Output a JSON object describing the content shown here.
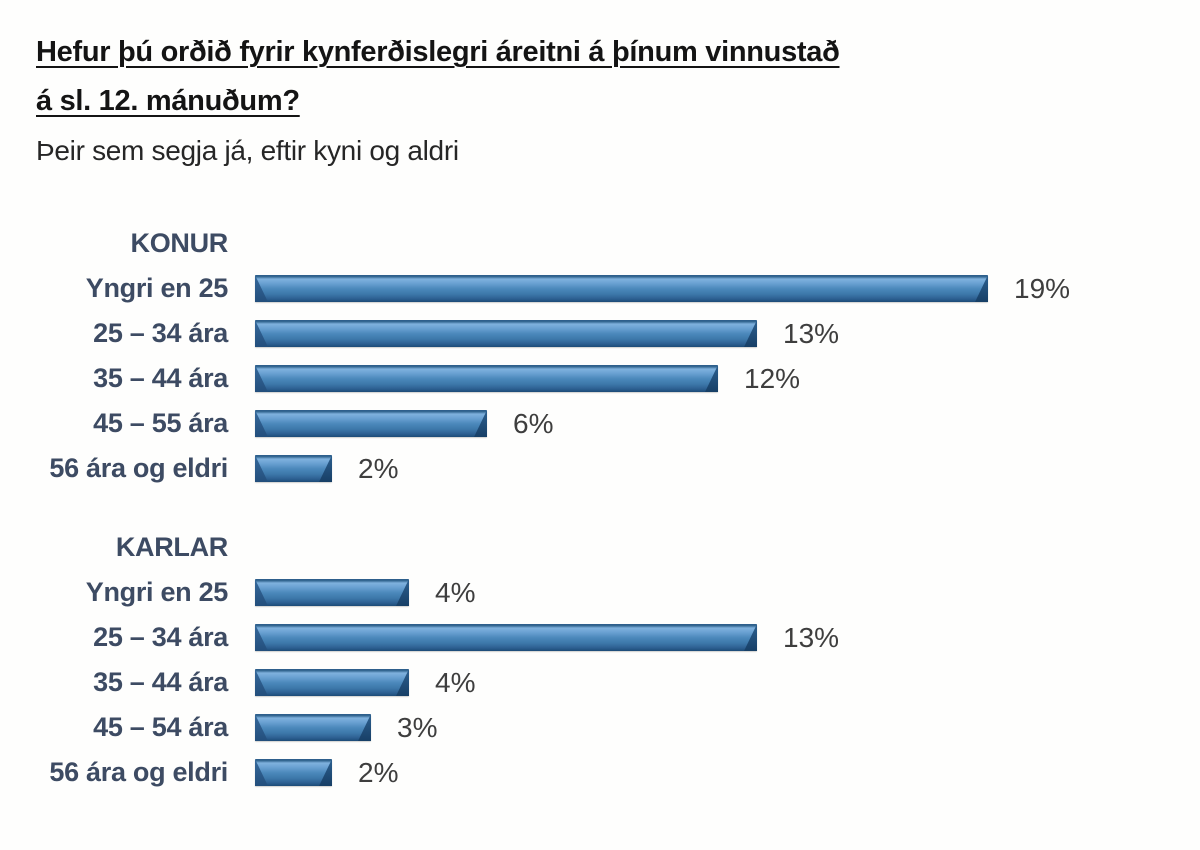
{
  "header": {
    "title_line1": "Hefur þú orðið fyrir kynferðislegri áreitni á þínum vinnustað",
    "title_line2": "á sl. 12. mánuðum?",
    "subtitle": "Þeir sem segja já, eftir kyni og aldri"
  },
  "chart_data": {
    "type": "bar",
    "orientation": "horizontal",
    "title": "Hefur þú orðið fyrir kynferðislegri áreitni á þínum vinnustað á sl. 12. mánuðum?",
    "subtitle": "Þeir sem segja já, eftir kyni og aldri",
    "unit": "%",
    "value_axis_range": [
      0,
      19
    ],
    "grid": false,
    "legend": false,
    "data_labels": true,
    "bar_color": "#4a87ba",
    "bar_highlight_color": "#7fb1dd",
    "bar_shadow_color": "#1d4b77",
    "label_color": "#3d4b63",
    "value_label_color": "#3e3e3e",
    "groups": [
      {
        "name": "KONUR",
        "categories": [
          "Yngri en 25",
          "25 – 34 ára",
          "35 – 44 ára",
          "45 – 55 ára",
          "56 ára og eldri"
        ],
        "values": [
          19,
          13,
          12,
          6,
          2
        ],
        "value_labels": [
          "19%",
          "13%",
          "12%",
          "6%",
          "2%"
        ]
      },
      {
        "name": "KARLAR",
        "categories": [
          "Yngri en 25",
          "25 – 34 ára",
          "35 – 44 ára",
          "45 – 54 ára",
          "56 ára og eldri"
        ],
        "values": [
          4,
          13,
          4,
          3,
          2
        ],
        "value_labels": [
          "4%",
          "13%",
          "4%",
          "3%",
          "2%"
        ]
      }
    ]
  }
}
